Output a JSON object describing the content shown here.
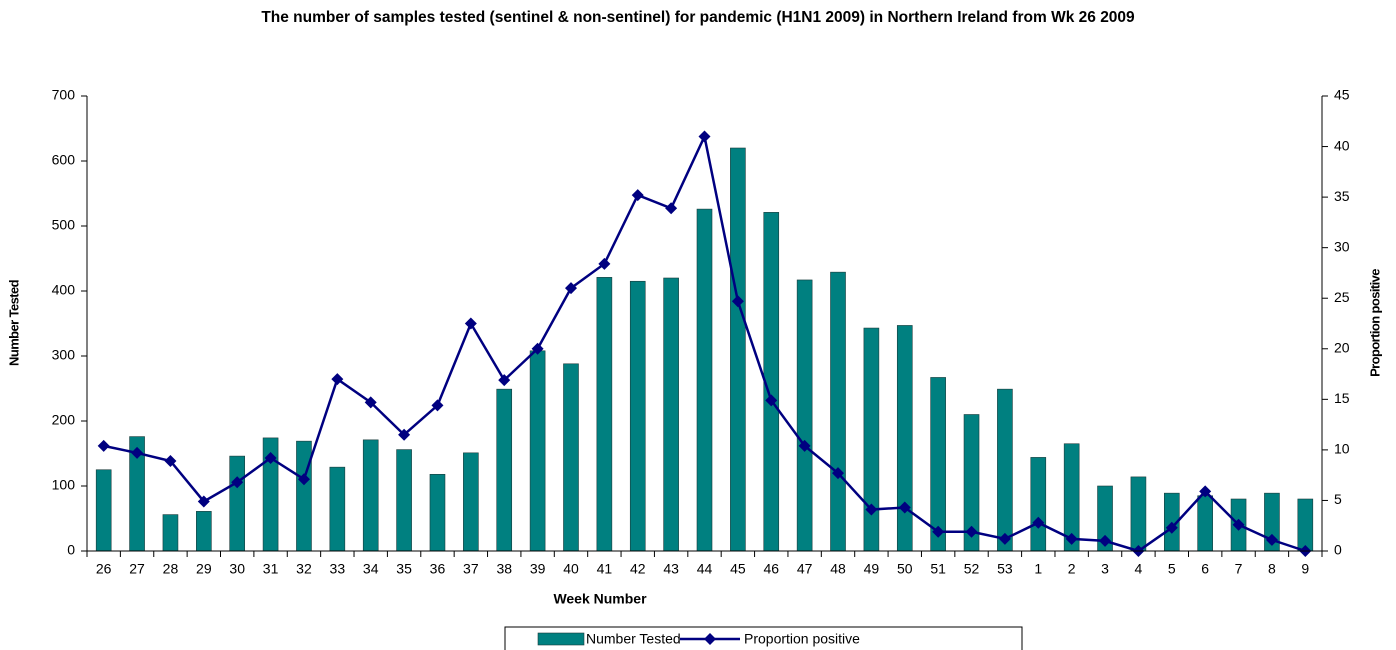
{
  "chart_data": {
    "type": "bar",
    "title": "The number of samples tested (sentinel & non-sentinel) for pandemic (H1N1 2009) in Northern Ireland from Wk 26 2009",
    "x_label": "Week Number",
    "y_label": "Number Tested",
    "y2_label": "Proportion positive",
    "categories": [
      "26",
      "27",
      "28",
      "29",
      "30",
      "31",
      "32",
      "33",
      "34",
      "35",
      "36",
      "37",
      "38",
      "39",
      "40",
      "41",
      "42",
      "43",
      "44",
      "45",
      "46",
      "47",
      "48",
      "49",
      "50",
      "51",
      "52",
      "53",
      "1",
      "2",
      "3",
      "4",
      "5",
      "6",
      "7",
      "8",
      "9"
    ],
    "series": [
      {
        "name": "Number Tested",
        "type": "bar",
        "color": "#008080",
        "values": [
          125,
          176,
          56,
          61,
          146,
          174,
          169,
          129,
          171,
          156,
          118,
          151,
          249,
          308,
          288,
          421,
          415,
          420,
          526,
          620,
          521,
          417,
          429,
          343,
          347,
          267,
          210,
          249,
          144,
          165,
          100,
          114,
          89,
          85,
          80,
          89,
          80
        ]
      },
      {
        "name": "Proportion positive",
        "type": "line",
        "axis": "y2",
        "color": "#000080",
        "values": [
          10.4,
          9.7,
          8.9,
          4.9,
          6.8,
          9.2,
          7.1,
          17.0,
          14.7,
          11.5,
          14.4,
          22.5,
          16.9,
          20.0,
          26.0,
          28.4,
          35.2,
          33.9,
          41.0,
          24.7,
          14.9,
          10.4,
          7.7,
          4.1,
          4.3,
          1.9,
          1.9,
          1.2,
          2.8,
          1.2,
          1.0,
          0,
          2.3,
          5.9,
          2.6,
          1.1,
          0
        ]
      }
    ],
    "ylim": [
      0,
      700
    ],
    "yticks": [
      0,
      100,
      200,
      300,
      400,
      500,
      600,
      700
    ],
    "y2lim": [
      0,
      45
    ],
    "y2ticks": [
      0,
      5,
      10,
      15,
      20,
      25,
      30,
      35,
      40,
      45
    ],
    "grid": false,
    "legend": "bottom"
  }
}
